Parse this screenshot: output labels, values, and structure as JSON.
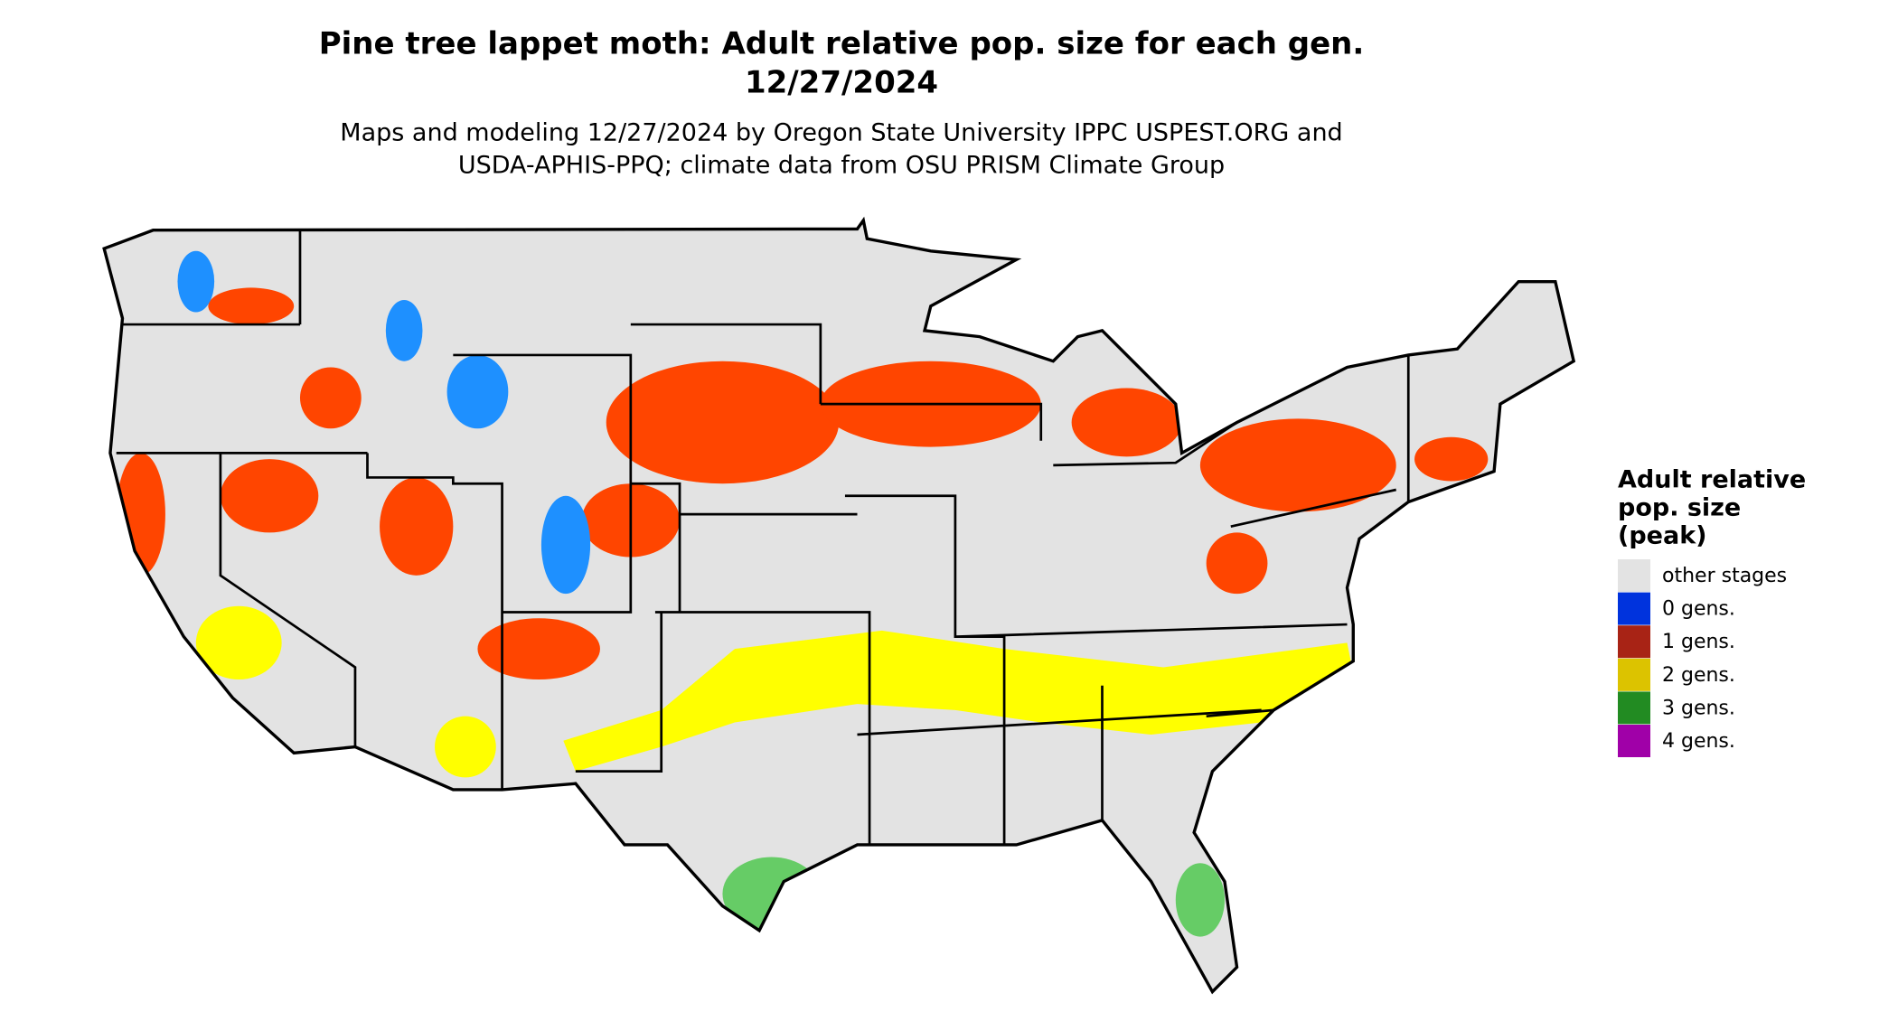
{
  "title_lines": [
    "Pine tree lappet moth: Adult relative pop. size for each gen.",
    "12/27/2024"
  ],
  "subtitle_lines": [
    "Maps and modeling 12/27/2024 by Oregon State University IPPC USPEST.ORG and",
    "USDA-APHIS-PPQ; climate data from OSU PRISM Climate Group"
  ],
  "legend": {
    "title_lines": [
      "Adult relative",
      "pop. size",
      "(peak)"
    ],
    "items": [
      {
        "label": "other stages",
        "color": "#e3e3e3"
      },
      {
        "label": "0 gens.",
        "color": "#0033dd"
      },
      {
        "label": "1 gens.",
        "color": "#a82315"
      },
      {
        "label": "2 gens.",
        "color": "#dcc300"
      },
      {
        "label": "3 gens.",
        "color": "#228b22"
      },
      {
        "label": "4 gens.",
        "color": "#a000a8"
      }
    ]
  }
}
